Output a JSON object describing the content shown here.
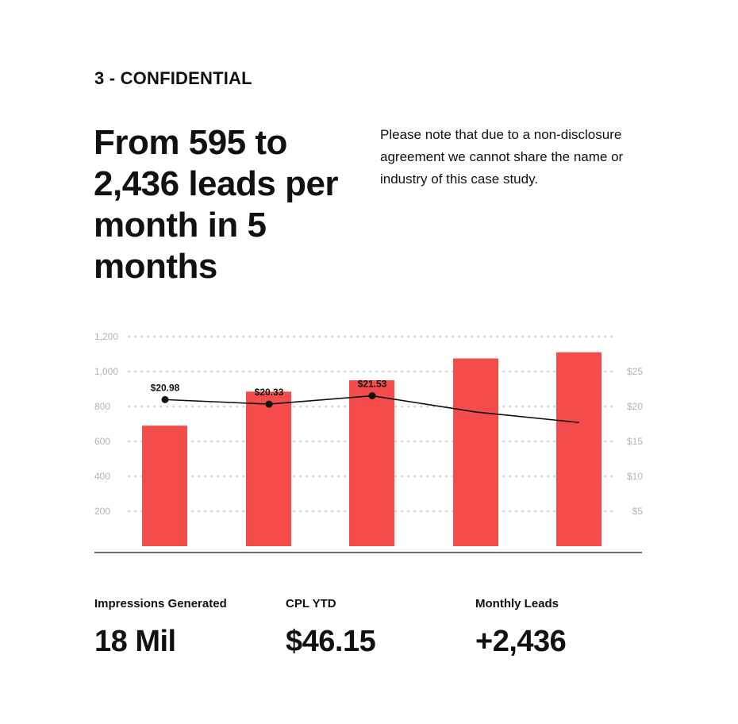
{
  "header": {
    "eyebrow": "3 - CONFIDENTIAL",
    "headline": "From 595 to 2,436 leads per month in 5 months",
    "note": "Please note that due to a non-disclosure agreement we cannot share the name or industry of this case study."
  },
  "chart_data": {
    "type": "bar",
    "categories": [
      "",
      "",
      "",
      "",
      ""
    ],
    "series": [
      {
        "type": "bar",
        "values": [
          690,
          885,
          950,
          1075,
          1110
        ],
        "color": "#f44b4b"
      },
      {
        "type": "line",
        "axis": "right",
        "values": [
          20.98,
          20.33,
          21.53,
          19.2,
          17.7
        ],
        "color": "#111111"
      }
    ],
    "data_labels": [
      "$20.98",
      "$20.33",
      "$21.53"
    ],
    "left_ticks": [
      "1,200",
      "1,000",
      "800",
      "600",
      "400",
      "200"
    ],
    "left_tick_values": [
      1200,
      1000,
      800,
      600,
      400,
      200
    ],
    "right_ticks": [
      "$25",
      "$20",
      "$15",
      "$10",
      "$5"
    ],
    "right_tick_values": [
      25,
      20,
      15,
      10,
      5
    ],
    "ylim": [
      0,
      1200
    ],
    "y2lim": [
      0,
      25
    ],
    "grid": true,
    "xlabel": "",
    "ylabel": ""
  },
  "stats": [
    {
      "label": "Impressions Generated",
      "value": "18 Mil"
    },
    {
      "label": "CPL YTD",
      "value": "$46.15"
    },
    {
      "label": "Monthly Leads",
      "value": "+2,436"
    }
  ]
}
